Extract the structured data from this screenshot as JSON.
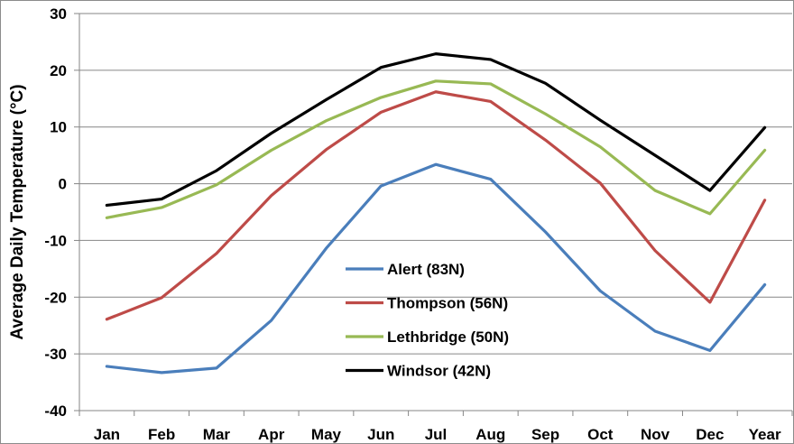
{
  "chart_data": {
    "type": "line",
    "title": "",
    "xlabel": "",
    "ylabel": "Average Daily Temperature (°C)",
    "ylim": [
      -40,
      30
    ],
    "yticks": [
      30,
      20,
      10,
      0,
      -10,
      -20,
      -30,
      -40
    ],
    "grid": true,
    "legend_position": "center",
    "categories": [
      "Jan",
      "Feb",
      "Mar",
      "Apr",
      "May",
      "Jun",
      "Jul",
      "Aug",
      "Sep",
      "Oct",
      "Nov",
      "Dec",
      "Year"
    ],
    "series": [
      {
        "name": "Alert (83N)",
        "color": "#4a7ebb",
        "values": [
          -32.2,
          -33.3,
          -32.5,
          -24.1,
          -11.4,
          -0.4,
          3.4,
          0.8,
          -8.5,
          -18.9,
          -26.0,
          -29.4,
          -17.8
        ]
      },
      {
        "name": "Thompson (56N)",
        "color": "#be4b48",
        "values": [
          -23.9,
          -20.1,
          -12.3,
          -2.1,
          6.0,
          12.6,
          16.2,
          14.5,
          7.7,
          0.1,
          -11.8,
          -20.9,
          -2.9
        ]
      },
      {
        "name": "Lethbridge (50N)",
        "color": "#98b954",
        "values": [
          -6.0,
          -4.2,
          -0.2,
          5.9,
          11.1,
          15.2,
          18.1,
          17.6,
          12.3,
          6.5,
          -1.2,
          -5.3,
          5.9
        ]
      },
      {
        "name": "Windsor (42N)",
        "color": "#000000",
        "values": [
          -3.8,
          -2.7,
          2.3,
          8.9,
          14.8,
          20.5,
          22.9,
          21.9,
          17.7,
          11.2,
          5.0,
          -1.2,
          9.9
        ]
      }
    ]
  }
}
